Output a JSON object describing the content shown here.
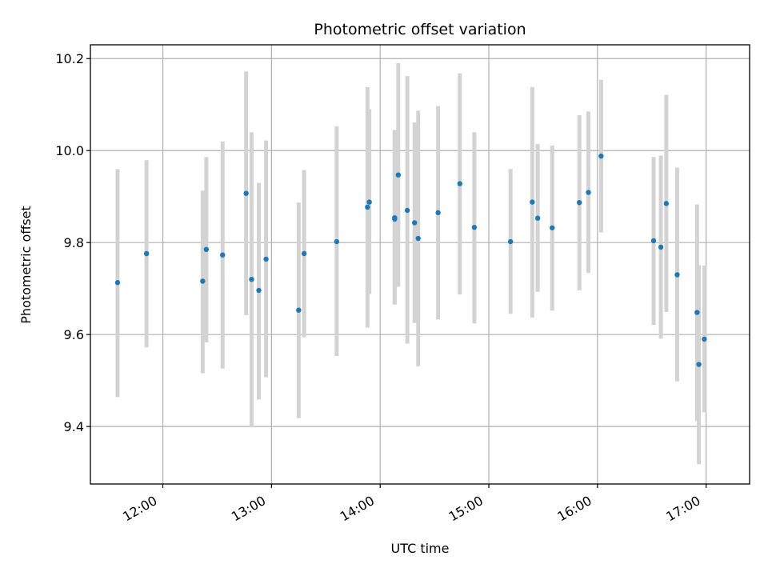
{
  "chart_data": {
    "type": "scatter",
    "title": "Photometric offset variation",
    "xlabel": "UTC time",
    "ylabel": "Photometric offset",
    "x_tick_labels": [
      "12:00",
      "13:00",
      "14:00",
      "15:00",
      "16:00",
      "17:00"
    ],
    "y_tick_labels": [
      "9.4",
      "9.6",
      "9.8",
      "10.0",
      "10.2"
    ],
    "xlim": [
      "11:20",
      "17:24"
    ],
    "ylim": [
      9.275,
      10.23
    ],
    "grid": true,
    "colors": {
      "point": "#1f77b4",
      "errorbar": "#d3d3d3",
      "grid": "#b0b0b0"
    },
    "points": [
      {
        "x": "11:35",
        "y": 9.713,
        "ylow": 9.464,
        "yhigh": 9.96
      },
      {
        "x": "11:51",
        "y": 9.776,
        "ylow": 9.572,
        "yhigh": 9.979
      },
      {
        "x": "12:22",
        "y": 9.716,
        "ylow": 9.516,
        "yhigh": 9.913
      },
      {
        "x": "12:24",
        "y": 9.785,
        "ylow": 9.583,
        "yhigh": 9.986
      },
      {
        "x": "12:33",
        "y": 9.773,
        "ylow": 9.526,
        "yhigh": 10.02
      },
      {
        "x": "12:46",
        "y": 9.907,
        "ylow": 9.642,
        "yhigh": 10.172
      },
      {
        "x": "12:49",
        "y": 9.72,
        "ylow": 9.399,
        "yhigh": 10.04
      },
      {
        "x": "12:53",
        "y": 9.696,
        "ylow": 9.459,
        "yhigh": 9.93
      },
      {
        "x": "12:57",
        "y": 9.764,
        "ylow": 9.507,
        "yhigh": 10.022
      },
      {
        "x": "13:15",
        "y": 9.653,
        "ylow": 9.418,
        "yhigh": 9.887
      },
      {
        "x": "13:18",
        "y": 9.776,
        "ylow": 9.594,
        "yhigh": 9.958
      },
      {
        "x": "13:36",
        "y": 9.802,
        "ylow": 9.553,
        "yhigh": 10.053
      },
      {
        "x": "13:53",
        "y": 9.877,
        "ylow": 9.615,
        "yhigh": 10.138
      },
      {
        "x": "13:54",
        "y": 9.888,
        "ylow": 9.688,
        "yhigh": 10.09
      },
      {
        "x": "14:08",
        "y": 9.851,
        "ylow": 9.666,
        "yhigh": 10.04
      },
      {
        "x": "14:08",
        "y": 9.854,
        "ylow": 9.665,
        "yhigh": 10.045
      },
      {
        "x": "14:10",
        "y": 9.947,
        "ylow": 9.704,
        "yhigh": 10.19
      },
      {
        "x": "14:15",
        "y": 9.87,
        "ylow": 9.58,
        "yhigh": 10.162
      },
      {
        "x": "14:19",
        "y": 9.843,
        "ylow": 9.625,
        "yhigh": 10.061
      },
      {
        "x": "14:21",
        "y": 9.809,
        "ylow": 9.531,
        "yhigh": 10.087
      },
      {
        "x": "14:32",
        "y": 9.865,
        "ylow": 9.633,
        "yhigh": 10.097
      },
      {
        "x": "14:44",
        "y": 9.928,
        "ylow": 9.687,
        "yhigh": 10.168
      },
      {
        "x": "14:52",
        "y": 9.833,
        "ylow": 9.624,
        "yhigh": 10.04
      },
      {
        "x": "15:12",
        "y": 9.802,
        "ylow": 9.645,
        "yhigh": 9.96
      },
      {
        "x": "15:24",
        "y": 9.888,
        "ylow": 9.637,
        "yhigh": 10.138
      },
      {
        "x": "15:27",
        "y": 9.853,
        "ylow": 9.693,
        "yhigh": 10.014
      },
      {
        "x": "15:35",
        "y": 9.832,
        "ylow": 9.652,
        "yhigh": 10.011
      },
      {
        "x": "15:50",
        "y": 9.887,
        "ylow": 9.696,
        "yhigh": 10.077
      },
      {
        "x": "15:55",
        "y": 9.909,
        "ylow": 9.734,
        "yhigh": 10.085
      },
      {
        "x": "16:02",
        "y": 9.988,
        "ylow": 9.822,
        "yhigh": 10.154
      },
      {
        "x": "16:31",
        "y": 9.804,
        "ylow": 9.621,
        "yhigh": 9.986
      },
      {
        "x": "16:35",
        "y": 9.79,
        "ylow": 9.591,
        "yhigh": 9.989
      },
      {
        "x": "16:38",
        "y": 9.885,
        "ylow": 9.649,
        "yhigh": 10.121
      },
      {
        "x": "16:44",
        "y": 9.73,
        "ylow": 9.498,
        "yhigh": 9.963
      },
      {
        "x": "16:55",
        "y": 9.648,
        "ylow": 9.412,
        "yhigh": 9.883
      },
      {
        "x": "16:56",
        "y": 9.535,
        "ylow": 9.318,
        "yhigh": 9.751
      },
      {
        "x": "16:59",
        "y": 9.59,
        "ylow": 9.431,
        "yhigh": 9.75
      }
    ]
  }
}
